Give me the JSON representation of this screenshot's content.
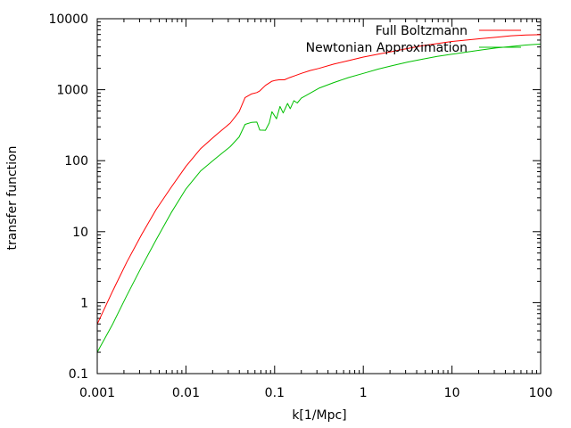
{
  "chart_data": {
    "type": "line",
    "xlabel": "k[1/Mpc]",
    "ylabel": "transfer function",
    "xscale": "log",
    "yscale": "log",
    "xlim": [
      0.001,
      100
    ],
    "ylim": [
      0.1,
      10000
    ],
    "x_ticks": [
      "0.001",
      "0.01",
      "0.1",
      "1",
      "10",
      "100"
    ],
    "y_ticks": [
      "0.1",
      "1",
      "10",
      "100",
      "1000",
      "10000"
    ],
    "grid": false,
    "legend_position": "top-right",
    "series": [
      {
        "name": "Full Boltzmann",
        "color": "#ff0000",
        "x": [
          0.001,
          0.00147,
          0.00215,
          0.00316,
          0.00464,
          0.00681,
          0.01,
          0.0147,
          0.0215,
          0.0316,
          0.0398,
          0.0464,
          0.0546,
          0.0631,
          0.0681,
          0.0787,
          0.0933,
          0.1,
          0.112,
          0.129,
          0.147,
          0.172,
          0.2,
          0.251,
          0.316,
          0.464,
          0.681,
          1,
          1.47,
          2.15,
          3.16,
          4.64,
          6.81,
          10,
          14.7,
          21.5,
          31.6,
          46.4,
          68.1,
          100
        ],
        "y": [
          0.5,
          1.4,
          3.7,
          9.1,
          20.8,
          42.1,
          83,
          148,
          226,
          339,
          489,
          776,
          871,
          912,
          962,
          1148,
          1318,
          1349,
          1380,
          1380,
          1479,
          1585,
          1698,
          1862,
          1995,
          2291,
          2570,
          2884,
          3162,
          3467,
          3802,
          4169,
          4467,
          4786,
          5012,
          5248,
          5500,
          5750,
          5900,
          5950
        ]
      },
      {
        "name": "Newtonian Approximation",
        "color": "#00c000",
        "x": [
          0.001,
          0.00147,
          0.00215,
          0.00316,
          0.00464,
          0.00681,
          0.01,
          0.0147,
          0.0215,
          0.0316,
          0.0398,
          0.0464,
          0.0546,
          0.0631,
          0.0681,
          0.0787,
          0.087,
          0.0933,
          0.105,
          0.115,
          0.125,
          0.14,
          0.15,
          0.165,
          0.18,
          0.2,
          0.251,
          0.316,
          0.464,
          0.681,
          1,
          1.47,
          2.15,
          3.16,
          4.64,
          6.81,
          10,
          14.7,
          21.5,
          31.6,
          46.4,
          68.1,
          100
        ],
        "y": [
          0.2,
          0.48,
          1.25,
          3.2,
          7.8,
          18.4,
          40,
          72,
          107,
          158,
          216,
          325,
          346,
          350,
          270,
          268,
          340,
          490,
          390,
          580,
          470,
          640,
          540,
          700,
          650,
          760,
          890,
          1050,
          1260,
          1480,
          1700,
          1950,
          2190,
          2450,
          2690,
          2950,
          3160,
          3390,
          3630,
          3870,
          4070,
          4260,
          4400
        ]
      }
    ]
  }
}
